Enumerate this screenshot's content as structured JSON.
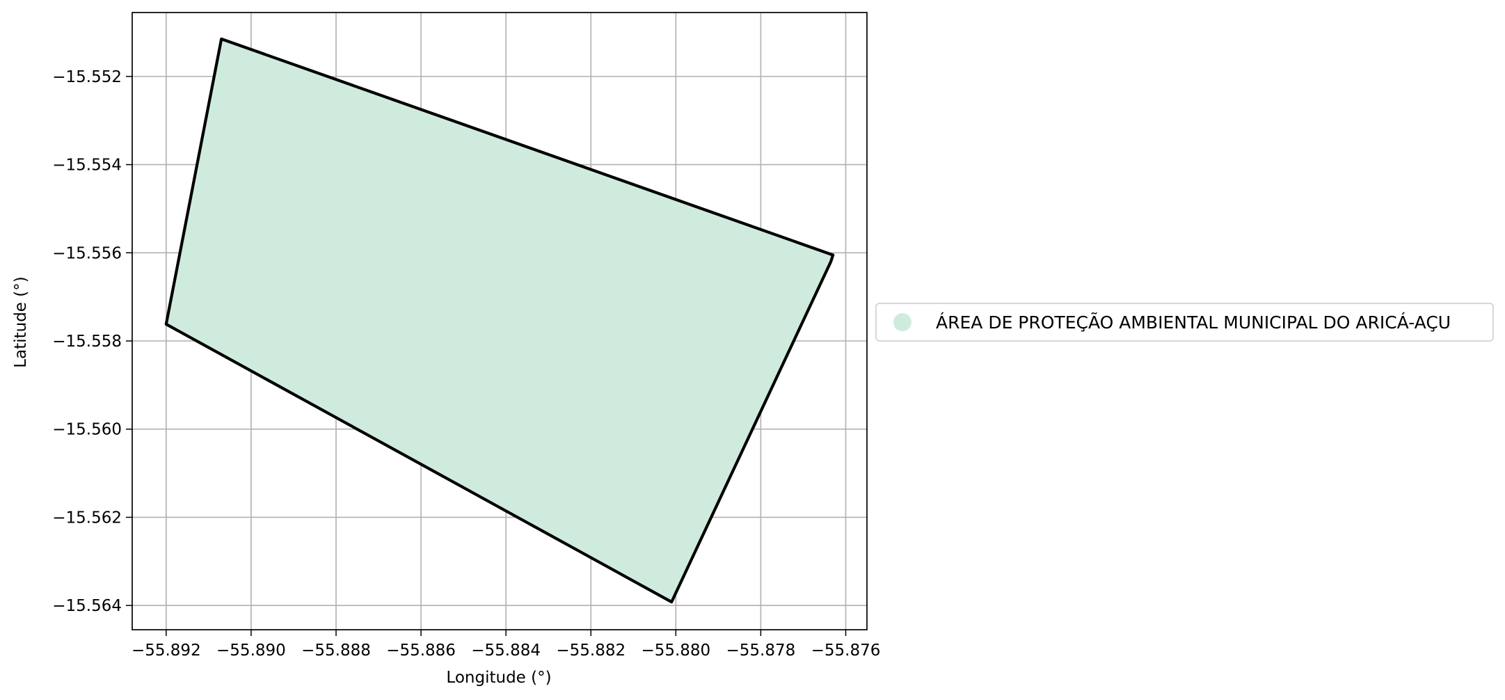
{
  "chart_data": {
    "type": "map",
    "title": "",
    "xlabel": "Longitude (°)",
    "ylabel": "Latitude (°)",
    "xlim": [
      -55.8928,
      -55.8755
    ],
    "ylim": [
      -15.56455,
      -15.55055
    ],
    "grid": true,
    "legend_position": "right, outside plot",
    "x_ticks": [
      -55.892,
      -55.89,
      -55.888,
      -55.886,
      -55.884,
      -55.882,
      -55.88,
      -55.878,
      -55.876
    ],
    "x_tick_labels": [
      "−55.892",
      "−55.890",
      "−55.888",
      "−55.886",
      "−55.884",
      "−55.882",
      "−55.880",
      "−55.878",
      "−55.876"
    ],
    "y_ticks": [
      -15.552,
      -15.554,
      -15.556,
      -15.558,
      -15.56,
      -15.562,
      -15.564
    ],
    "y_tick_labels": [
      "−15.552",
      "−15.554",
      "−15.556",
      "−15.558",
      "−15.560",
      "−15.562",
      "−15.564"
    ],
    "features": [
      {
        "name": "ÁREA DE PROTEÇÃO AMBIENTAL MUNICIPAL DO ARICÁ-AÇU",
        "fill": "#cfebde",
        "stroke": "#000000",
        "coordinates": [
          [
            -55.8907,
            -15.55115
          ],
          [
            -55.8763,
            -15.55605
          ],
          [
            -55.87635,
            -15.5562
          ],
          [
            -55.8801,
            -15.56392
          ],
          [
            -55.892,
            -15.55762
          ],
          [
            -55.8907,
            -15.55115
          ]
        ]
      }
    ]
  },
  "colors": {
    "grid": "#b0b0b0",
    "axes": "#000000",
    "legend_border": "#cccccc"
  }
}
